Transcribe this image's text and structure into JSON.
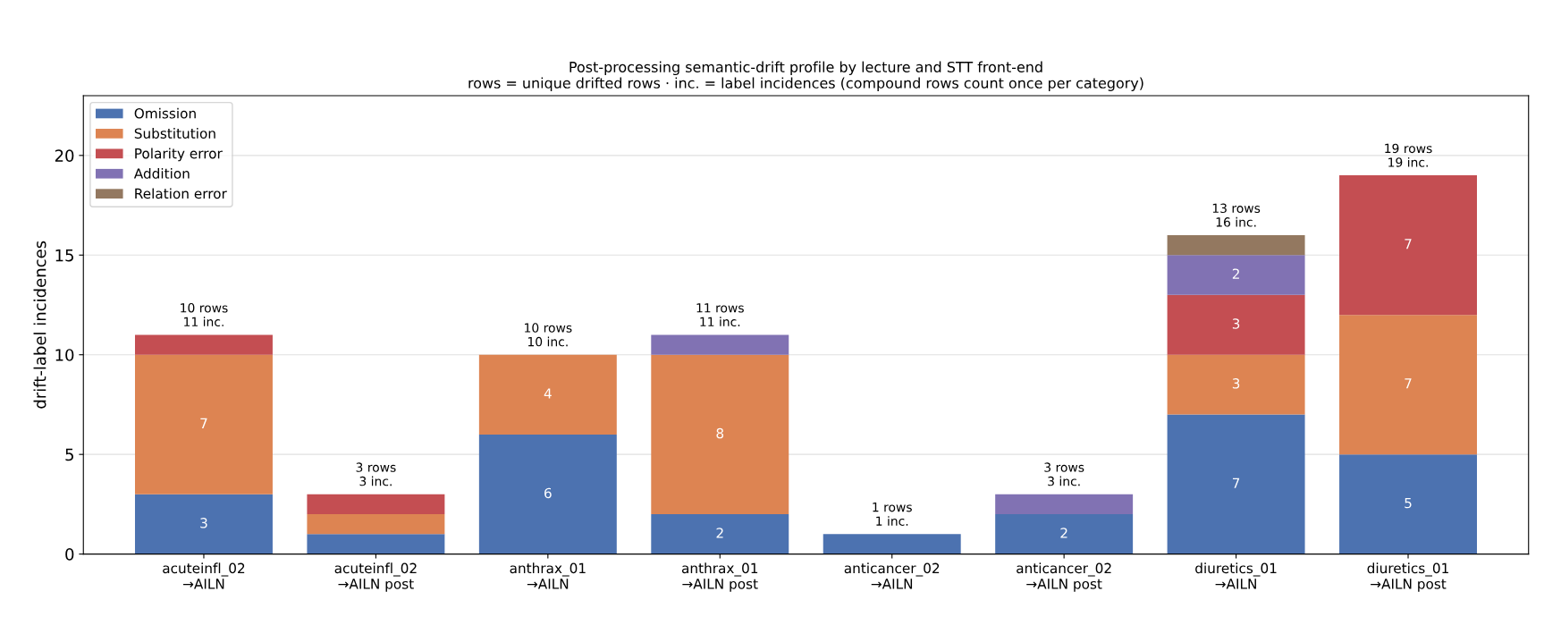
{
  "chart_data": {
    "type": "bar",
    "stacked": true,
    "title": "Post-processing semantic-drift profile by lecture and STT front-end",
    "subtitle": "rows = unique drifted rows · inc. = label incidences (compound rows count once per category)",
    "ylabel": "drift-label incidences",
    "categories": [
      "acuteinfl_02\n→AILN",
      "acuteinfl_02\n→AILN post",
      "anthrax_01\n→AILN",
      "anthrax_01\n→AILN post",
      "anticancer_02\n→AILN",
      "anticancer_02\n→AILN post",
      "diuretics_01\n→AILN",
      "diuretics_01\n→AILN post"
    ],
    "series": [
      {
        "name": "Omission",
        "color": "#4c72b0",
        "values": [
          3,
          1,
          6,
          2,
          1,
          2,
          7,
          5
        ],
        "value_labels": [
          "3",
          null,
          "6",
          "2",
          null,
          "2",
          "7",
          "5"
        ]
      },
      {
        "name": "Substitution",
        "color": "#dd8452",
        "values": [
          7,
          1,
          4,
          8,
          null,
          null,
          3,
          7
        ],
        "value_labels": [
          "7",
          null,
          "4",
          "8",
          null,
          null,
          "3",
          "7"
        ]
      },
      {
        "name": "Polarity error",
        "color": "#c44e52",
        "values": [
          1,
          1,
          null,
          null,
          null,
          null,
          3,
          7
        ],
        "value_labels": [
          null,
          null,
          null,
          null,
          null,
          null,
          "3",
          "7"
        ]
      },
      {
        "name": "Addition",
        "color": "#8172b3",
        "values": [
          null,
          null,
          null,
          1,
          null,
          1,
          2,
          null
        ],
        "value_labels": [
          null,
          null,
          null,
          null,
          null,
          null,
          "2",
          null
        ]
      },
      {
        "name": "Relation error",
        "color": "#937860",
        "values": [
          null,
          null,
          null,
          null,
          null,
          null,
          1,
          null
        ],
        "value_labels": [
          null,
          null,
          null,
          null,
          null,
          null,
          null,
          null
        ]
      }
    ],
    "totals": [
      "10 rows\n11 inc.",
      "3 rows\n3 inc.",
      "10 rows\n10 inc.",
      "11 rows\n11 inc.",
      "1 rows\n1 inc.",
      "3 rows\n3 inc.",
      "13 rows\n16 inc.",
      "19 rows\n19 inc."
    ],
    "ylim": [
      0,
      23
    ],
    "yticks": [
      0,
      5,
      10,
      15,
      20
    ],
    "grid": "y",
    "legend": "top left"
  }
}
